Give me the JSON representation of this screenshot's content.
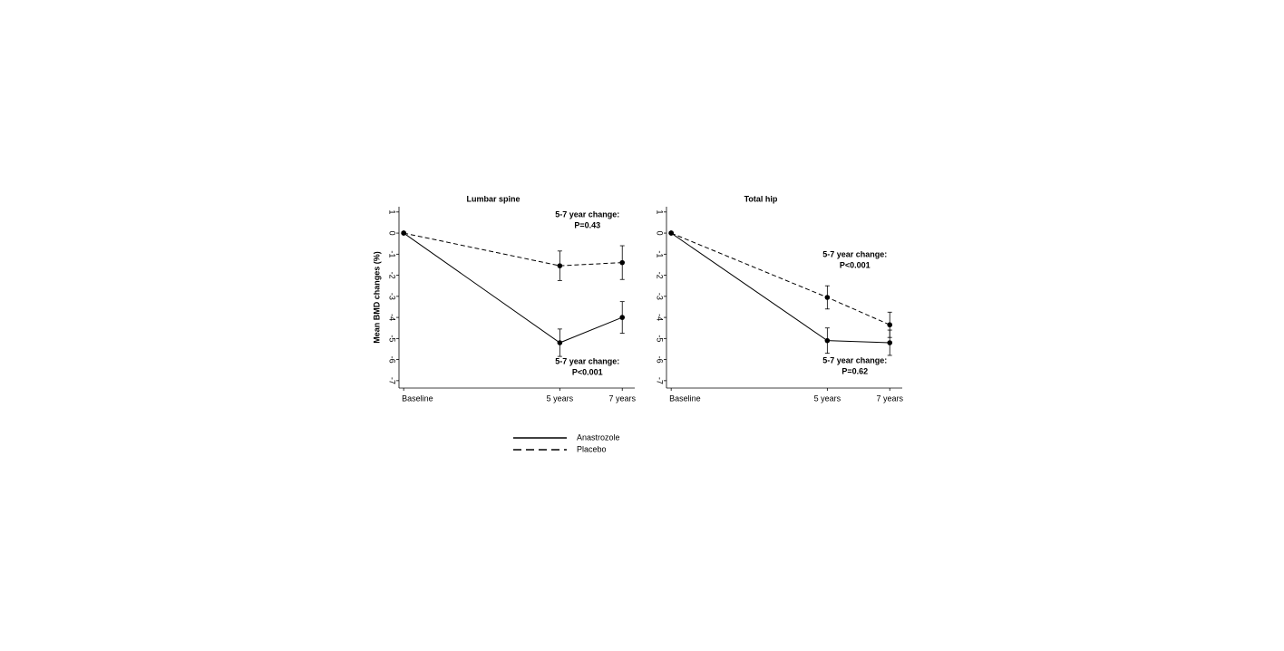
{
  "chart_data": [
    {
      "type": "line",
      "title": "Lumbar spine",
      "y_label": "Mean BMD changes (%)",
      "x": [
        0,
        5,
        7
      ],
      "xticks": [
        {
          "value": 0,
          "label": "Baseline"
        },
        {
          "value": 5,
          "label": "5 years"
        },
        {
          "value": 7,
          "label": "7 years"
        }
      ],
      "xlim": [
        -0.15,
        7.4
      ],
      "ylim": [
        -7.35,
        1.25
      ],
      "yticks": [
        -7,
        -6,
        -5,
        -4,
        -3,
        -2,
        -1,
        0,
        1
      ],
      "series": [
        {
          "name": "Anastrozole",
          "color": "#000000",
          "dash": "solid",
          "values": [
            0,
            -5.2,
            -4.0
          ],
          "errors": [
            0,
            0.65,
            0.75
          ],
          "annotation": [
            "5-7 year change:",
            "P<0.001"
          ]
        },
        {
          "name": "Placebo",
          "color": "#000000",
          "dash": "dashed",
          "values": [
            0,
            -1.55,
            -1.4
          ],
          "errors": [
            0,
            0.7,
            0.8
          ],
          "annotation": [
            "5-7 year change:",
            "P=0.43"
          ]
        }
      ]
    },
    {
      "type": "line",
      "title": "Total hip",
      "x": [
        0,
        5,
        7
      ],
      "xticks": [
        {
          "value": 0,
          "label": "Baseline"
        },
        {
          "value": 5,
          "label": "5 years"
        },
        {
          "value": 7,
          "label": "7 years"
        }
      ],
      "xlim": [
        -0.15,
        7.4
      ],
      "ylim": [
        -7.35,
        1.25
      ],
      "yticks": [
        -7,
        -6,
        -5,
        -4,
        -3,
        -2,
        -1,
        0,
        1
      ],
      "series": [
        {
          "color": "#000000",
          "dash": "solid",
          "values": [
            0,
            -5.1,
            -5.2
          ],
          "errors": [
            0,
            0.6,
            0.6
          ],
          "annotation": [
            "5-7 year change:",
            "P=0.62"
          ]
        },
        {
          "color": "#000000",
          "dash": "dashed",
          "values": [
            0,
            -3.05,
            -4.35
          ],
          "errors": [
            0,
            0.55,
            0.6
          ],
          "annotation": [
            "5-7 year change:",
            "P<0.001"
          ]
        }
      ]
    }
  ]
}
